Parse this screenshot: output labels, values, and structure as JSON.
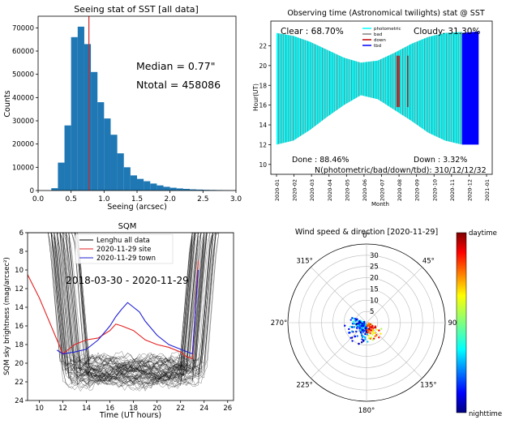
{
  "chart_data": [
    {
      "type": "bar",
      "title": "Seeing stat of SST [all data]",
      "xlabel": "Seeing (arcsec)",
      "ylabel": "Counts",
      "xlim": [
        0.0,
        3.0
      ],
      "ylim": [
        0,
        75000
      ],
      "xticks": [
        "0.0",
        "0.5",
        "1.0",
        "1.5",
        "2.0",
        "2.5",
        "3.0"
      ],
      "yticks": [
        "0",
        "10000",
        "20000",
        "30000",
        "40000",
        "50000",
        "60000",
        "70000"
      ],
      "bin_width": 0.1,
      "bin_starts": [
        0.2,
        0.3,
        0.4,
        0.5,
        0.6,
        0.7,
        0.8,
        0.9,
        1.0,
        1.1,
        1.2,
        1.3,
        1.4,
        1.5,
        1.6,
        1.7,
        1.8,
        1.9,
        2.0,
        2.1,
        2.2,
        2.3,
        2.4,
        2.5,
        2.6,
        2.7,
        2.8,
        2.9
      ],
      "values": [
        1000,
        12000,
        28000,
        66000,
        70500,
        63000,
        51000,
        38000,
        31000,
        24000,
        16000,
        10000,
        6500,
        5000,
        4000,
        3000,
        2200,
        1600,
        1200,
        900,
        700,
        500,
        400,
        300,
        250,
        200,
        150,
        100
      ],
      "median_line": 0.77,
      "annotations": {
        "median": "Median = 0.77\"",
        "ntotal": "Ntotal = 458086"
      },
      "colors": {
        "bars": "#1f77b4",
        "median": "#d62728"
      }
    },
    {
      "type": "area",
      "title": "Observing time (Astronomical twilights) stat @ SST",
      "xlabel": "Month",
      "ylabel": "Hour(UT)",
      "ylim": [
        9,
        24.5
      ],
      "yticks": [
        "10",
        "12",
        "14",
        "16",
        "18",
        "20",
        "22"
      ],
      "xticks": [
        "2020-01",
        "2020-02",
        "2020-03",
        "2020-04",
        "2020-05",
        "2020-06",
        "2020-07",
        "2020-08",
        "2020-09",
        "2020-10",
        "2020-11",
        "2020-12",
        "2021-01"
      ],
      "night_start": [
        12.0,
        12.4,
        13.5,
        14.8,
        16.0,
        17.0,
        16.6,
        15.5,
        14.4,
        13.2,
        12.4,
        12.0
      ],
      "night_end": [
        23.3,
        23.0,
        22.4,
        21.6,
        20.8,
        20.3,
        20.5,
        21.3,
        22.2,
        22.9,
        23.3,
        23.4
      ],
      "legend": [
        "photometric",
        "bad",
        "down",
        "tbd"
      ],
      "annotations": {
        "clear": "Clear  : 68.70%",
        "cloudy": "Cloudy: 31.30%",
        "done": "Done  : 88.46%",
        "down": "Down  : 3.32%",
        "counts": "N(photometric/bad/down/tbd): 310/12/12/32"
      },
      "colors": {
        "photometric": "#00ffff",
        "bad": "#808080",
        "down": "#c00000",
        "tbd": "#0000ff"
      }
    },
    {
      "type": "line",
      "title": "SQM",
      "xlabel": "Time (UT hours)",
      "ylabel": "SQM sky brightness (mag/arcsec²)",
      "xlim": [
        9,
        26.5
      ],
      "ylim": [
        24,
        6
      ],
      "xticks": [
        "10",
        "12",
        "14",
        "16",
        "18",
        "20",
        "22",
        "24",
        "26"
      ],
      "yticks": [
        "6",
        "8",
        "10",
        "12",
        "14",
        "16",
        "18",
        "20",
        "22",
        "24"
      ],
      "legend": [
        "Lenghu all data",
        "2020-11-29 site",
        "2020-11-29 town"
      ],
      "annotation": "2018-03-30 - 2020-11-29",
      "series": [
        {
          "name": "2020-11-29 site",
          "x": [
            9,
            10,
            11,
            11.5,
            12,
            13,
            14,
            15,
            16,
            16.5,
            17,
            18,
            19,
            20,
            21,
            22,
            22.5,
            23,
            23.5
          ],
          "y": [
            10.5,
            13,
            16,
            17.5,
            19.0,
            18.0,
            17.5,
            17.3,
            16.5,
            15.8,
            16.0,
            16.5,
            17.5,
            18.0,
            18.3,
            18.8,
            19.3,
            19.5,
            9.0
          ]
        },
        {
          "name": "2020-11-29 town",
          "x": [
            11.5,
            12,
            13,
            14,
            15,
            16,
            16.5,
            17,
            17.5,
            18,
            18.5,
            19,
            20,
            21,
            22,
            23,
            23.5
          ],
          "y": [
            18.6,
            19.0,
            18.8,
            18.5,
            17.5,
            16.0,
            15.0,
            14.2,
            13.5,
            14.0,
            14.5,
            15.5,
            17.0,
            18.0,
            18.5,
            19.0,
            10.0
          ]
        }
      ],
      "colors": {
        "all": "#000000",
        "site": "#e32222",
        "town": "#1f1fd6"
      }
    },
    {
      "type": "scatter",
      "title": "Wind speed & direction [2020-11-29]",
      "radial_ticks": [
        "5",
        "10",
        "15",
        "20",
        "25",
        "30"
      ],
      "rmax": 35,
      "angle_labels": [
        "0°",
        "45°",
        "90°",
        "135°",
        "180°",
        "225°",
        "270°",
        "315°"
      ],
      "colorbar": {
        "top": "daytime",
        "bottom": "nighttime"
      },
      "points": [
        {
          "theta": 150,
          "r": 4,
          "c": 0.9
        },
        {
          "theta": 160,
          "r": 5,
          "c": 0.8
        },
        {
          "theta": 200,
          "r": 6,
          "c": 0.2
        },
        {
          "theta": 210,
          "r": 5,
          "c": 0.1
        },
        {
          "theta": 230,
          "r": 4,
          "c": 0.15
        },
        {
          "theta": 190,
          "r": 8,
          "c": 0.05
        },
        {
          "theta": 170,
          "r": 7,
          "c": 0.6
        },
        {
          "theta": 250,
          "r": 6,
          "c": 0.3
        },
        {
          "theta": 260,
          "r": 3,
          "c": 0.4
        },
        {
          "theta": 120,
          "r": 3,
          "c": 0.95
        },
        {
          "theta": 140,
          "r": 6,
          "c": 0.7
        },
        {
          "theta": 220,
          "r": 8,
          "c": 0.1
        },
        {
          "theta": 200,
          "r": 10,
          "c": 0.05
        },
        {
          "theta": 180,
          "r": 5,
          "c": 0.5
        },
        {
          "theta": 240,
          "r": 9,
          "c": 0.2
        },
        {
          "theta": 280,
          "r": 5,
          "c": 0.25
        }
      ]
    }
  ]
}
